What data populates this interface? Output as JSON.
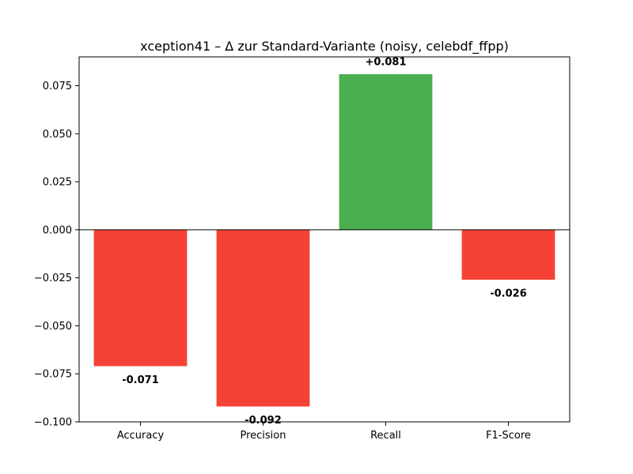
{
  "chart_data": {
    "type": "bar",
    "title": "xception41 – Δ zur Standard-Variante (noisy, celebdf_ffpp)",
    "xlabel": "",
    "ylabel": "",
    "categories": [
      "Accuracy",
      "Precision",
      "Recall",
      "F1-Score"
    ],
    "values": [
      -0.071,
      -0.092,
      0.081,
      -0.026
    ],
    "data_labels": [
      "-0.071",
      "-0.092",
      "+0.081",
      "-0.026"
    ],
    "ylim": [
      -0.1,
      0.09
    ],
    "yticks": [
      -0.1,
      -0.075,
      -0.05,
      -0.025,
      0.0,
      0.025,
      0.05,
      0.075
    ],
    "ytick_labels": [
      "−0.100",
      "−0.075",
      "−0.050",
      "−0.025",
      "0.000",
      "0.025",
      "0.050",
      "0.075"
    ],
    "grid": false,
    "zero_line": true,
    "colors": {
      "positive": "#4caf50",
      "negative": "#f44336"
    }
  }
}
